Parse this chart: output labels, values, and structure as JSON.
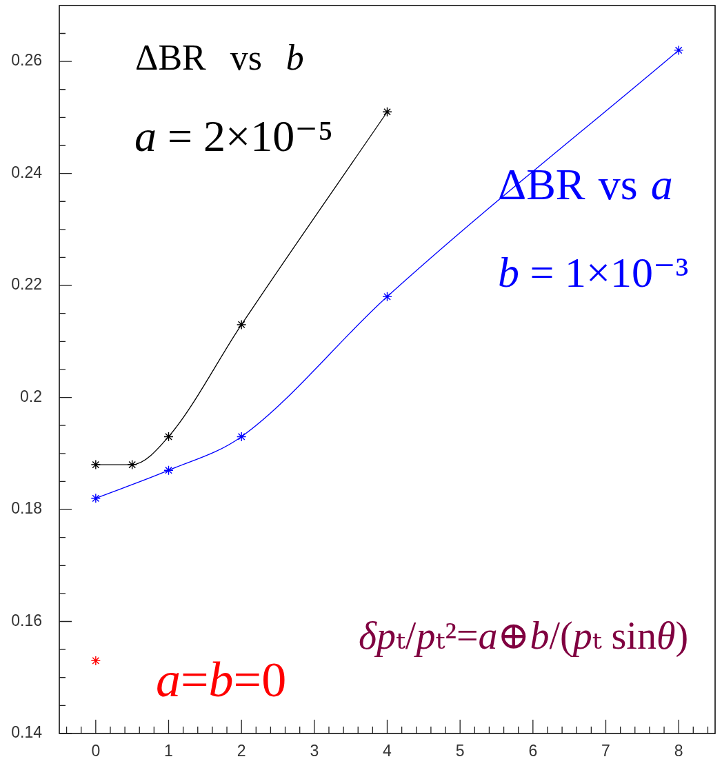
{
  "chart_data": {
    "type": "line",
    "series": [
      {
        "name": "ΔBR vs b",
        "color": "#000000",
        "x": [
          0,
          0.5,
          1,
          2,
          4
        ],
        "values": [
          0.188,
          0.188,
          0.193,
          0.213,
          0.251
        ]
      },
      {
        "name": "ΔBR vs a",
        "color": "#0000ff",
        "x": [
          0,
          1,
          2,
          4,
          8
        ],
        "values": [
          0.182,
          0.187,
          0.193,
          0.218,
          0.262
        ]
      },
      {
        "name": "a=b=0",
        "type": "scatter",
        "color": "#ff0000",
        "x": [
          0
        ],
        "values": [
          0.153
        ]
      }
    ],
    "annotations": [
      "a = 2×10⁻⁵",
      "b = 1×10⁻³",
      "δpₜ/pₜ²=a⊕b/(pₜ sinθ)"
    ],
    "marker": "cross",
    "xlim": [
      -0.5,
      8.5
    ],
    "xticks": [
      {
        "value": -0.4,
        "label": null
      },
      {
        "value": -0.2,
        "label": null
      },
      0,
      {
        "value": 0.2,
        "label": null
      },
      {
        "value": 0.4,
        "label": null
      },
      {
        "value": 0.6,
        "label": null
      },
      {
        "value": 0.8,
        "label": null
      },
      1,
      {
        "value": 1.2,
        "label": null
      },
      {
        "value": 1.4,
        "label": null
      },
      {
        "value": 1.6,
        "label": null
      },
      {
        "value": 1.8,
        "label": null
      },
      2,
      {
        "value": 2.2,
        "label": null
      },
      {
        "value": 2.4,
        "label": null
      },
      {
        "value": 2.6,
        "label": null
      },
      {
        "value": 2.8,
        "label": null
      },
      3,
      {
        "value": 3.2,
        "label": null
      },
      {
        "value": 3.4,
        "label": null
      },
      {
        "value": 3.6,
        "label": null
      },
      {
        "value": 3.8,
        "label": null
      },
      4,
      {
        "value": 4.2,
        "label": null
      },
      {
        "value": 4.4,
        "label": null
      },
      {
        "value": 4.6,
        "label": null
      },
      {
        "value": 4.8,
        "label": null
      },
      5,
      {
        "value": 5.2,
        "label": null
      },
      {
        "value": 5.4,
        "label": null
      },
      {
        "value": 5.6,
        "label": null
      },
      {
        "value": 5.8,
        "label": null
      },
      6,
      {
        "value": 6.2,
        "label": null
      },
      {
        "value": 6.4,
        "label": null
      },
      {
        "value": 6.6,
        "label": null
      },
      {
        "value": 6.8,
        "label": null
      },
      7,
      {
        "value": 7.2,
        "label": null
      },
      {
        "value": 7.4,
        "label": null
      },
      {
        "value": 7.6,
        "label": null
      },
      {
        "value": 7.8,
        "label": null
      },
      8,
      {
        "value": 8.2,
        "label": null
      },
      {
        "value": 8.4,
        "label": null
      }
    ],
    "ylim": [
      0.14,
      0.27
    ],
    "yticks": [
      0.14,
      {
        "value": 0.145,
        "label": null
      },
      {
        "value": 0.15,
        "label": null
      },
      {
        "value": 0.155,
        "label": null
      },
      0.16,
      {
        "value": 0.165,
        "label": null
      },
      {
        "value": 0.17,
        "label": null
      },
      {
        "value": 0.175,
        "label": null
      },
      0.18,
      {
        "value": 0.185,
        "label": null
      },
      {
        "value": 0.19,
        "label": null
      },
      {
        "value": 0.195,
        "label": null
      },
      0.2,
      {
        "value": 0.205,
        "label": null
      },
      {
        "value": 0.21,
        "label": null
      },
      {
        "value": 0.215,
        "label": null
      },
      0.22,
      {
        "value": 0.225,
        "label": null
      },
      {
        "value": 0.23,
        "label": null
      },
      {
        "value": 0.235,
        "label": null
      },
      0.24,
      {
        "value": 0.245,
        "label": null
      },
      {
        "value": 0.25,
        "label": null
      },
      {
        "value": 0.255,
        "label": null
      },
      0.26,
      {
        "value": 0.265,
        "label": null
      }
    ]
  }
}
